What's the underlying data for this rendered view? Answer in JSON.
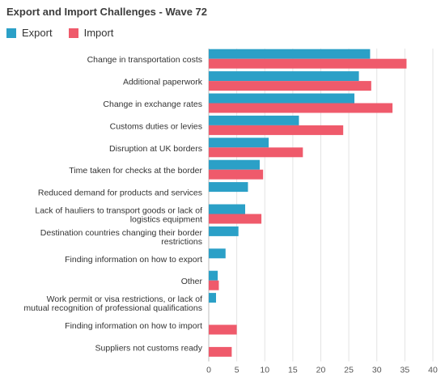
{
  "chart_data": {
    "type": "bar",
    "orientation": "horizontal",
    "title": "Export and Import Challenges - Wave 72",
    "categories": [
      [
        "Change in transportation costs"
      ],
      [
        "Additional paperwork"
      ],
      [
        "Change in exchange rates"
      ],
      [
        "Customs duties or levies"
      ],
      [
        "Disruption at UK borders"
      ],
      [
        "Time taken for checks at the border"
      ],
      [
        "Reduced demand for products and services"
      ],
      [
        "Lack of hauliers to transport goods or lack of",
        "logistics equipment"
      ],
      [
        "Destination countries changing their border",
        "restrictions"
      ],
      [
        "Finding information on how to export"
      ],
      [
        "Other"
      ],
      [
        "Work permit or visa restrictions, or lack of",
        "mutual recognition of professional qualifications"
      ],
      [
        "Finding information on how to import"
      ],
      [
        "Suppliers not customs ready"
      ]
    ],
    "series": [
      {
        "name": "Export",
        "color": "#2ba0c7",
        "values": [
          28.8,
          26.8,
          26.0,
          16.1,
          10.7,
          9.1,
          7.0,
          6.5,
          5.3,
          3.0,
          1.6,
          1.3,
          null,
          null
        ]
      },
      {
        "name": "Import",
        "color": "#ef5a6b",
        "values": [
          35.3,
          29.0,
          32.8,
          24.0,
          16.8,
          9.7,
          null,
          9.4,
          null,
          null,
          1.8,
          null,
          5.0,
          4.1
        ]
      }
    ],
    "xlim": [
      0,
      40
    ],
    "xticks": [
      0,
      5,
      10,
      15,
      20,
      25,
      30,
      35,
      40
    ],
    "grid": true,
    "legend_position": "top-left",
    "xlabel": "",
    "ylabel": ""
  }
}
